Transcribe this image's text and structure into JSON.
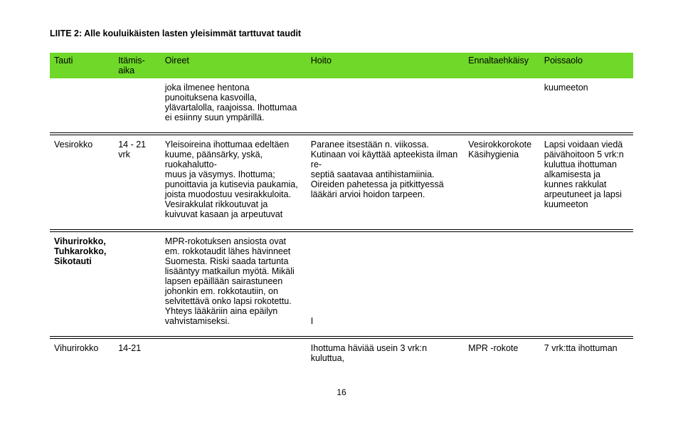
{
  "title": "LIITE 2: Alle kouluikäisten lasten yleisimmät tarttuvat taudit",
  "headers": {
    "tauti": "Tauti",
    "itamisaika": "Itämis-\naika",
    "oireet": "Oireet",
    "hoito": "Hoito",
    "ennaltaehkaisy": "Ennaltaehkäisy",
    "poissaolo": "Poissaolo"
  },
  "rows": {
    "r0": {
      "tauti": "",
      "itamis": "",
      "oireet": "joka ilmenee hentona punoituksena kasvoilla, ylävartalolla, raajoissa. Ihottumaa ei esiinny suun ympärillä.",
      "hoito": "",
      "ennalt": "",
      "poissa": "kuumeeton"
    },
    "r1": {
      "tauti": "Vesirokko",
      "itamis": "14 - 21 vrk",
      "oireet": "Yleisoireina ihottumaa edeltäen kuume, päänsärky, yskä, ruokahalutto-\nmuus ja väsymys. Ihottuma; punoittavia ja kutisevia paukamia, joista muodostuu vesirakkuloita. Vesirakkulat rikkoutuvat ja kuivuvat kasaan ja arpeutuvat",
      "hoito": "Paranee itsestään n. viikossa. Kutinaan voi käyttää apteekista ilman re-\nseptiä saatavaa antihistamiinia. Oireiden pahetessa ja pitkittyessä lääkäri arvioi hoidon tarpeen.",
      "ennalt": "Vesirokkorokote Käsihygienia",
      "poissa": "Lapsi voidaan viedä päivähoitoon 5 vrk:n kuluttua ihottuman alkamisesta ja kunnes rakkulat arpeutuneet ja lapsi kuumeeton"
    },
    "r2": {
      "tauti": "Vihurirokko, Tuhkarokko, Sikotauti",
      "itamis": "",
      "oireet": "MPR-rokotuksen ansiosta ovat em. rokkotaudit lähes hävinneet Suomesta. Riski saada tartunta lisääntyy matkailun myötä. Mikäli lapsen epäillään sairastuneen johonkin em. rokkotautiin, on selvitettävä onko lapsi rokotettu. Yhteys lääkäriin aina epäilyn vahvistamiseksi.",
      "hoito": "I",
      "ennalt": "",
      "poissa": ""
    },
    "r3": {
      "tauti": "Vihurirokko",
      "itamis": "14-21",
      "oireet": "",
      "hoito": "Ihottuma häviää usein 3 vrk:n kuluttua,",
      "ennalt": "MPR -rokote",
      "poissa": "7 vrk:tta ihottuman"
    }
  },
  "page_number": "16",
  "colors": {
    "header_bg": "#6fd828"
  }
}
